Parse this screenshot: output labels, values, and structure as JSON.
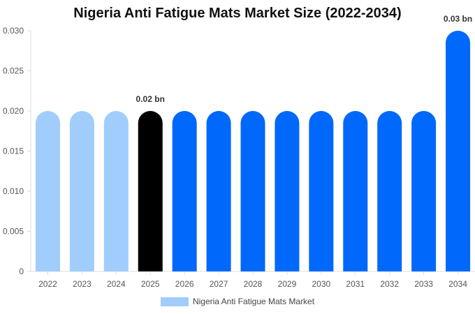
{
  "chart_data": {
    "type": "bar",
    "title": "Nigeria Anti Fatigue Mats Market Size (2022-2034)",
    "categories": [
      "2022",
      "2023",
      "2024",
      "2025",
      "2026",
      "2027",
      "2028",
      "2029",
      "2030",
      "2031",
      "2032",
      "2033",
      "2034"
    ],
    "series": [
      {
        "name": "Nigeria Anti Fatigue Mats Market",
        "values": [
          0.02,
          0.02,
          0.02,
          0.02,
          0.02,
          0.02,
          0.02,
          0.02,
          0.02,
          0.02,
          0.02,
          0.02,
          0.03
        ]
      }
    ],
    "data_labels": [
      {
        "category": "2025",
        "text": "0.02 bn"
      },
      {
        "category": "2034",
        "text": "0.03 bn"
      }
    ],
    "ylim": [
      0,
      0.03
    ],
    "yticks": [
      "0",
      "0.005",
      "0.010",
      "0.015",
      "0.020",
      "0.025",
      "0.030"
    ],
    "xlabel": "",
    "ylabel": "",
    "grid": false,
    "legend_position": "bottom",
    "colors": {
      "historical": "#a0cdfc",
      "current": "#000000",
      "forecast": "#0068fa",
      "legend_swatch": "#a0cdfc"
    },
    "bar_period": [
      "historical",
      "historical",
      "historical",
      "current",
      "forecast",
      "forecast",
      "forecast",
      "forecast",
      "forecast",
      "forecast",
      "forecast",
      "forecast",
      "forecast"
    ]
  }
}
